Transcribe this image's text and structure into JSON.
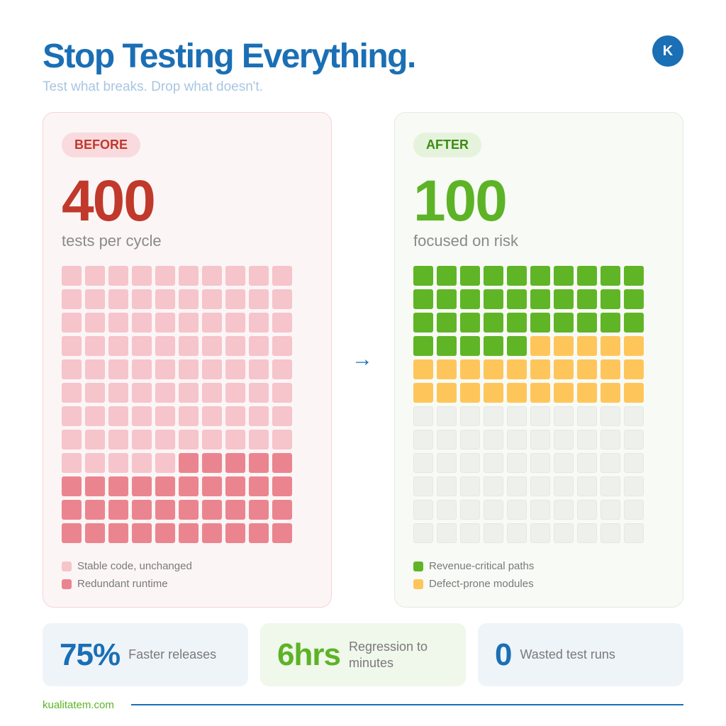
{
  "header": {
    "title": "Stop Testing Everything.",
    "subtitle": "Test what breaks. Drop what doesn't.",
    "logo_letter": "K"
  },
  "before": {
    "badge": "BEFORE",
    "value": "400",
    "caption": "tests per cycle",
    "grid": {
      "columns": 10,
      "rows": 12,
      "segments": [
        {
          "key": "stable",
          "count": 85
        },
        {
          "key": "redundant",
          "count": 35
        }
      ]
    },
    "legend": [
      {
        "key": "stable",
        "label": "Stable code, unchanged",
        "color": "#f6c4cb"
      },
      {
        "key": "redundant",
        "label": "Redundant runtime",
        "color": "#ea858f"
      }
    ]
  },
  "after": {
    "badge": "AFTER",
    "value": "100",
    "caption": "focused on risk",
    "grid": {
      "columns": 10,
      "rows": 12,
      "segments": [
        {
          "key": "revenue",
          "count": 35
        },
        {
          "key": "defect",
          "count": 25
        },
        {
          "key": "empty",
          "count": 60
        }
      ]
    },
    "legend": [
      {
        "key": "revenue",
        "label": "Revenue-critical paths",
        "color": "#60b526"
      },
      {
        "key": "defect",
        "label": "Defect-prone modules",
        "color": "#fec65a"
      }
    ]
  },
  "arrow_icon": "arrow-right-icon",
  "stats": [
    {
      "value": "75%",
      "label": "Faster releases"
    },
    {
      "value": "6hrs",
      "label": "Regression to minutes"
    },
    {
      "value": "0",
      "label": "Wasted test runs"
    }
  ],
  "footer": {
    "link": "kualitatem.com"
  },
  "colors": {
    "brand_blue": "#1a6fb5",
    "before_red": "#c0392b",
    "after_green": "#5db326"
  }
}
